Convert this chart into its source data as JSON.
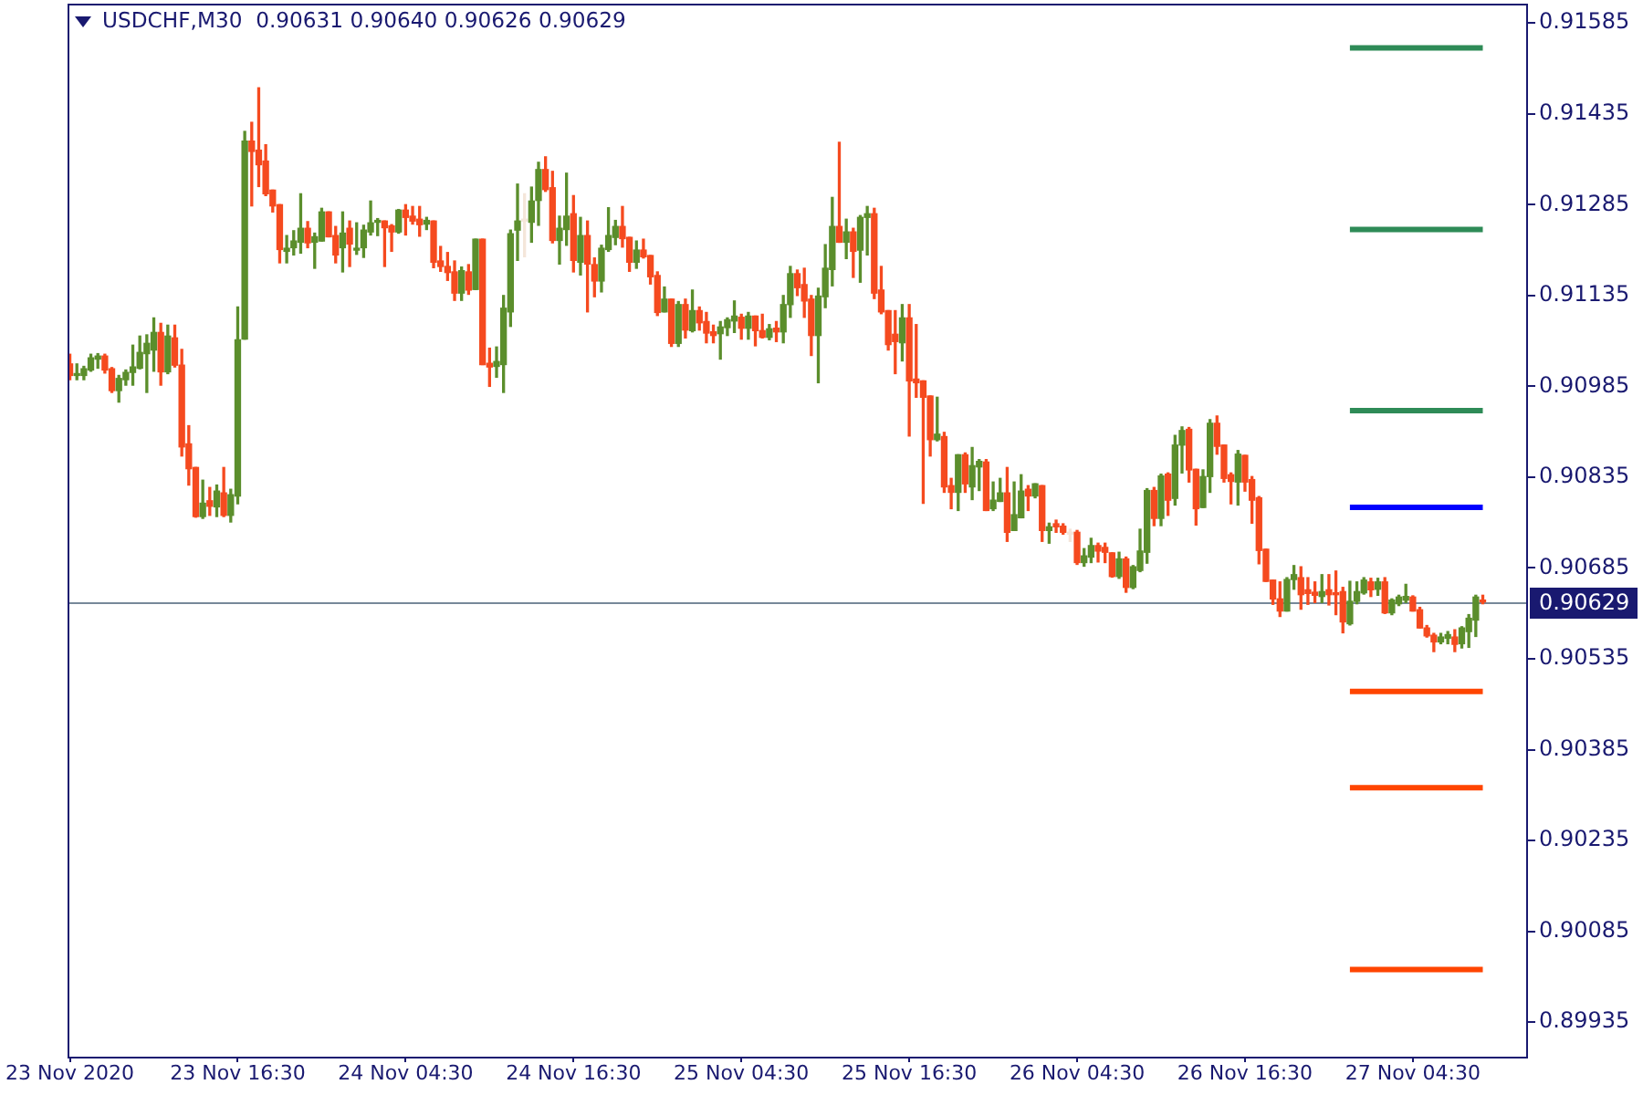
{
  "chart_data": {
    "type": "candlestick",
    "title": "USDCHF,M30  0.90631 0.90640 0.90626 0.90629",
    "x": [
      "2020-11-23T04:30",
      "2020-11-23T05:00",
      "2020-11-23T05:30",
      "2020-11-23T06:00",
      "2020-11-23T06:30",
      "2020-11-23T07:00",
      "2020-11-23T07:30",
      "2020-11-23T08:00",
      "2020-11-23T08:30",
      "2020-11-23T09:00",
      "2020-11-23T09:30",
      "2020-11-23T10:00",
      "2020-11-23T10:30",
      "2020-11-23T11:00",
      "2020-11-23T11:30",
      "2020-11-23T12:00",
      "2020-11-23T12:30",
      "2020-11-23T13:00",
      "2020-11-23T13:30",
      "2020-11-23T14:00",
      "2020-11-23T14:30",
      "2020-11-23T15:00",
      "2020-11-23T15:30",
      "2020-11-23T16:00",
      "2020-11-23T16:30",
      "2020-11-23T17:00",
      "2020-11-23T17:30",
      "2020-11-23T18:00",
      "2020-11-23T18:30",
      "2020-11-23T19:00",
      "2020-11-23T19:30",
      "2020-11-23T20:00",
      "2020-11-23T20:30",
      "2020-11-23T21:00",
      "2020-11-23T21:30",
      "2020-11-23T22:00",
      "2020-11-23T22:30",
      "2020-11-23T23:00",
      "2020-11-23T23:30",
      "2020-11-24T00:00",
      "2020-11-24T00:30",
      "2020-11-24T01:00",
      "2020-11-24T01:30",
      "2020-11-24T02:00",
      "2020-11-24T02:30",
      "2020-11-24T03:00",
      "2020-11-24T03:30",
      "2020-11-24T04:00",
      "2020-11-24T04:30",
      "2020-11-24T05:00",
      "2020-11-24T05:30",
      "2020-11-24T06:00",
      "2020-11-24T06:30",
      "2020-11-24T07:00",
      "2020-11-24T07:30",
      "2020-11-24T08:00",
      "2020-11-24T08:30",
      "2020-11-24T09:00",
      "2020-11-24T09:30",
      "2020-11-24T10:00",
      "2020-11-24T10:30",
      "2020-11-24T11:00",
      "2020-11-24T11:30",
      "2020-11-24T12:00",
      "2020-11-24T12:30",
      "2020-11-24T13:00",
      "2020-11-24T13:30",
      "2020-11-24T14:00",
      "2020-11-24T14:30",
      "2020-11-24T15:00",
      "2020-11-24T15:30",
      "2020-11-24T16:00",
      "2020-11-24T16:30",
      "2020-11-24T17:00",
      "2020-11-24T17:30",
      "2020-11-24T18:00",
      "2020-11-24T18:30",
      "2020-11-24T19:00",
      "2020-11-24T19:30",
      "2020-11-24T20:00",
      "2020-11-24T20:30",
      "2020-11-24T21:00",
      "2020-11-24T21:30",
      "2020-11-24T22:00",
      "2020-11-24T22:30",
      "2020-11-24T23:00",
      "2020-11-24T23:30",
      "2020-11-25T00:00",
      "2020-11-25T00:30",
      "2020-11-25T01:00",
      "2020-11-25T01:30",
      "2020-11-25T02:00",
      "2020-11-25T02:30",
      "2020-11-25T03:00",
      "2020-11-25T03:30",
      "2020-11-25T04:00",
      "2020-11-25T04:30",
      "2020-11-25T05:00",
      "2020-11-25T05:30",
      "2020-11-25T06:00",
      "2020-11-25T06:30",
      "2020-11-25T07:00",
      "2020-11-25T07:30",
      "2020-11-25T08:00",
      "2020-11-25T08:30",
      "2020-11-25T09:00",
      "2020-11-25T09:30",
      "2020-11-25T10:00",
      "2020-11-25T10:30",
      "2020-11-25T11:00",
      "2020-11-25T11:30",
      "2020-11-25T12:00",
      "2020-11-25T12:30",
      "2020-11-25T13:00",
      "2020-11-25T13:30",
      "2020-11-25T14:00",
      "2020-11-25T14:30",
      "2020-11-25T15:00",
      "2020-11-25T15:30",
      "2020-11-25T16:00",
      "2020-11-25T16:30",
      "2020-11-25T17:00",
      "2020-11-25T17:30",
      "2020-11-25T18:00",
      "2020-11-25T18:30",
      "2020-11-25T19:00",
      "2020-11-25T19:30",
      "2020-11-25T20:00",
      "2020-11-25T20:30",
      "2020-11-25T21:00",
      "2020-11-25T21:30",
      "2020-11-25T22:00",
      "2020-11-25T22:30",
      "2020-11-25T23:00",
      "2020-11-25T23:30",
      "2020-11-26T00:00",
      "2020-11-26T00:30",
      "2020-11-26T01:00",
      "2020-11-26T01:30",
      "2020-11-26T02:00",
      "2020-11-26T02:30",
      "2020-11-26T03:00",
      "2020-11-26T03:30",
      "2020-11-26T04:00",
      "2020-11-26T04:30",
      "2020-11-26T05:00",
      "2020-11-26T05:30",
      "2020-11-26T06:00",
      "2020-11-26T06:30",
      "2020-11-26T07:00",
      "2020-11-26T07:30",
      "2020-11-26T08:00",
      "2020-11-26T08:30",
      "2020-11-26T09:00",
      "2020-11-26T09:30",
      "2020-11-26T10:00",
      "2020-11-26T10:30",
      "2020-11-26T11:00",
      "2020-11-26T11:30",
      "2020-11-26T12:00",
      "2020-11-26T12:30",
      "2020-11-26T13:00",
      "2020-11-26T13:30",
      "2020-11-26T14:00",
      "2020-11-26T14:30",
      "2020-11-26T15:00",
      "2020-11-26T15:30",
      "2020-11-26T16:00",
      "2020-11-26T16:30",
      "2020-11-26T17:00",
      "2020-11-26T17:30",
      "2020-11-26T18:00",
      "2020-11-26T18:30",
      "2020-11-26T19:00",
      "2020-11-26T19:30",
      "2020-11-26T20:00",
      "2020-11-26T20:30",
      "2020-11-26T21:00",
      "2020-11-26T21:30",
      "2020-11-26T22:00",
      "2020-11-26T22:30",
      "2020-11-26T23:00",
      "2020-11-26T23:30",
      "2020-11-27T00:00",
      "2020-11-27T00:30",
      "2020-11-27T01:00",
      "2020-11-27T01:30",
      "2020-11-27T02:00",
      "2020-11-27T02:30",
      "2020-11-27T03:00",
      "2020-11-27T03:30",
      "2020-11-27T04:00",
      "2020-11-27T04:30",
      "2020-11-27T05:00",
      "2020-11-27T05:30",
      "2020-11-27T06:00",
      "2020-11-27T06:30",
      "2020-11-27T07:00",
      "2020-11-27T07:30",
      "2020-11-27T08:00",
      "2020-11-27T08:30",
      "2020-11-27T09:00",
      "2020-11-27T09:30"
    ],
    "ohlc": [
      [
        0.91022,
        0.91038,
        0.90996,
        0.91003
      ],
      [
        0.91003,
        0.91022,
        0.90996,
        0.91005
      ],
      [
        0.91003,
        0.91018,
        0.90996,
        0.91014
      ],
      [
        0.91012,
        0.91038,
        0.9101,
        0.91032
      ],
      [
        0.9103,
        0.91039,
        0.91015,
        0.91035
      ],
      [
        0.91035,
        0.91038,
        0.91007,
        0.91012
      ],
      [
        0.91014,
        0.91016,
        0.90975,
        0.90978
      ],
      [
        0.90978,
        0.91003,
        0.90959,
        0.90998
      ],
      [
        0.90996,
        0.91012,
        0.90987,
        0.91008
      ],
      [
        0.91008,
        0.91053,
        0.90987,
        0.91017
      ],
      [
        0.91015,
        0.91068,
        0.91014,
        0.91041
      ],
      [
        0.91039,
        0.9107,
        0.90975,
        0.91056
      ],
      [
        0.91045,
        0.91098,
        0.9101,
        0.91074
      ],
      [
        0.91074,
        0.91089,
        0.90987,
        0.91009
      ],
      [
        0.91009,
        0.91086,
        0.91006,
        0.91068
      ],
      [
        0.91065,
        0.91086,
        0.91017,
        0.9102
      ],
      [
        0.9102,
        0.91046,
        0.9087,
        0.90885
      ],
      [
        0.9089,
        0.9092,
        0.90822,
        0.90849
      ],
      [
        0.90851,
        0.90851,
        0.90769,
        0.9077
      ],
      [
        0.9077,
        0.9083,
        0.90767,
        0.90792
      ],
      [
        0.90796,
        0.90818,
        0.90772,
        0.90787
      ],
      [
        0.90786,
        0.90822,
        0.9077,
        0.90812
      ],
      [
        0.90809,
        0.90851,
        0.9077,
        0.90772
      ],
      [
        0.90772,
        0.90815,
        0.90761,
        0.90806
      ],
      [
        0.90804,
        0.91116,
        0.90791,
        0.91062
      ],
      [
        0.91063,
        0.91406,
        0.91063,
        0.9139
      ],
      [
        0.9139,
        0.91421,
        0.91283,
        0.91373
      ],
      [
        0.91375,
        0.91478,
        0.91315,
        0.91351
      ],
      [
        0.91357,
        0.91384,
        0.913,
        0.91303
      ],
      [
        0.91309,
        0.91309,
        0.91273,
        0.91283
      ],
      [
        0.91285,
        0.91285,
        0.91189,
        0.91211
      ],
      [
        0.91208,
        0.91234,
        0.91189,
        0.91213
      ],
      [
        0.91214,
        0.91242,
        0.91202,
        0.91225
      ],
      [
        0.91223,
        0.91303,
        0.91205,
        0.91246
      ],
      [
        0.91246,
        0.91257,
        0.91214,
        0.91222
      ],
      [
        0.91223,
        0.91238,
        0.9118,
        0.91232
      ],
      [
        0.91225,
        0.91279,
        0.91225,
        0.91273
      ],
      [
        0.91273,
        0.91273,
        0.91232,
        0.91232
      ],
      [
        0.91234,
        0.91249,
        0.91189,
        0.91202
      ],
      [
        0.91214,
        0.91273,
        0.91174,
        0.91238
      ],
      [
        0.91246,
        0.91258,
        0.91183,
        0.9122
      ],
      [
        0.9121,
        0.91255,
        0.91203,
        0.91213
      ],
      [
        0.91214,
        0.91251,
        0.91198,
        0.91243
      ],
      [
        0.9124,
        0.91291,
        0.91235,
        0.91255
      ],
      [
        0.91256,
        0.91262,
        0.91234,
        0.91259
      ],
      [
        0.91258,
        0.91258,
        0.91183,
        0.91247
      ],
      [
        0.9125,
        0.91252,
        0.91208,
        0.9124
      ],
      [
        0.9124,
        0.91277,
        0.91238,
        0.91276
      ],
      [
        0.91276,
        0.91285,
        0.91235,
        0.91264
      ],
      [
        0.91266,
        0.91282,
        0.91253,
        0.91258
      ],
      [
        0.91261,
        0.91282,
        0.91233,
        0.91252
      ],
      [
        0.91253,
        0.91264,
        0.91244,
        0.91259
      ],
      [
        0.91258,
        0.91258,
        0.91181,
        0.9119
      ],
      [
        0.91192,
        0.91216,
        0.91175,
        0.91183
      ],
      [
        0.91183,
        0.91206,
        0.9116,
        0.91173
      ],
      [
        0.91174,
        0.91192,
        0.91127,
        0.91139
      ],
      [
        0.91139,
        0.91182,
        0.91127,
        0.91176
      ],
      [
        0.91174,
        0.91186,
        0.91137,
        0.91144
      ],
      [
        0.91145,
        0.91228,
        0.91145,
        0.91228
      ],
      [
        0.91228,
        0.91228,
        0.91021,
        0.91021
      ],
      [
        0.91023,
        0.91048,
        0.90985,
        0.91017
      ],
      [
        0.91018,
        0.9105,
        0.91,
        0.91026
      ],
      [
        0.91021,
        0.91135,
        0.90975,
        0.91114
      ],
      [
        0.91108,
        0.91243,
        0.91084,
        0.91237
      ],
      [
        0.91243,
        0.91319,
        0.91193,
        0.91258
      ],
      [
        0.91258,
        0.91303,
        0.91199,
        0.91258
      ],
      [
        0.91256,
        0.91314,
        0.91223,
        0.91291
      ],
      [
        0.91292,
        0.91355,
        0.91251,
        0.91343
      ],
      [
        0.91343,
        0.91364,
        0.91307,
        0.9131
      ],
      [
        0.91313,
        0.9134,
        0.91222,
        0.91226
      ],
      [
        0.91226,
        0.91266,
        0.91187,
        0.91246
      ],
      [
        0.91244,
        0.91337,
        0.91218,
        0.91266
      ],
      [
        0.9127,
        0.913,
        0.91174,
        0.91193
      ],
      [
        0.9119,
        0.91264,
        0.91169,
        0.91234
      ],
      [
        0.91234,
        0.91258,
        0.91108,
        0.91187
      ],
      [
        0.91186,
        0.91197,
        0.91133,
        0.91159
      ],
      [
        0.91159,
        0.91218,
        0.91141,
        0.91213
      ],
      [
        0.91211,
        0.9128,
        0.91208,
        0.91234
      ],
      [
        0.91231,
        0.91259,
        0.91219,
        0.91249
      ],
      [
        0.91249,
        0.91282,
        0.91215,
        0.91229
      ],
      [
        0.91231,
        0.91231,
        0.91175,
        0.9119
      ],
      [
        0.9119,
        0.91225,
        0.9118,
        0.9121
      ],
      [
        0.9121,
        0.91228,
        0.91197,
        0.91199
      ],
      [
        0.91201,
        0.91201,
        0.91154,
        0.91166
      ],
      [
        0.91168,
        0.91174,
        0.91102,
        0.91107
      ],
      [
        0.91108,
        0.91149,
        0.91108,
        0.91129
      ],
      [
        0.91129,
        0.91129,
        0.91051,
        0.91056
      ],
      [
        0.91056,
        0.91125,
        0.91051,
        0.9112
      ],
      [
        0.9112,
        0.91129,
        0.91065,
        0.91078
      ],
      [
        0.91077,
        0.91144,
        0.91075,
        0.9111
      ],
      [
        0.9111,
        0.91116,
        0.91078,
        0.9109
      ],
      [
        0.91092,
        0.91107,
        0.91057,
        0.91073
      ],
      [
        0.91075,
        0.91086,
        0.91057,
        0.91069
      ],
      [
        0.91072,
        0.91092,
        0.9103,
        0.91083
      ],
      [
        0.91082,
        0.91098,
        0.91069,
        0.91095
      ],
      [
        0.91093,
        0.91126,
        0.91074,
        0.91101
      ],
      [
        0.91099,
        0.91104,
        0.91063,
        0.91081
      ],
      [
        0.91081,
        0.91107,
        0.91063,
        0.91101
      ],
      [
        0.91101,
        0.91101,
        0.91052,
        0.91077
      ],
      [
        0.91077,
        0.91104,
        0.91065,
        0.91066
      ],
      [
        0.91066,
        0.91087,
        0.91062,
        0.9108
      ],
      [
        0.91081,
        0.91092,
        0.91059,
        0.91075
      ],
      [
        0.91075,
        0.91135,
        0.91057,
        0.9112
      ],
      [
        0.9112,
        0.91183,
        0.91099,
        0.91171
      ],
      [
        0.91171,
        0.91177,
        0.91135,
        0.91148
      ],
      [
        0.91153,
        0.9118,
        0.91099,
        0.91126
      ],
      [
        0.91129,
        0.91135,
        0.91036,
        0.91069
      ],
      [
        0.91069,
        0.91147,
        0.90991,
        0.91134
      ],
      [
        0.91133,
        0.91219,
        0.91115,
        0.9118
      ],
      [
        0.91178,
        0.91297,
        0.91151,
        0.91249
      ],
      [
        0.91249,
        0.91388,
        0.91223,
        0.91223
      ],
      [
        0.91223,
        0.91261,
        0.91196,
        0.9124
      ],
      [
        0.9124,
        0.91246,
        0.91165,
        0.91208
      ],
      [
        0.9121,
        0.91267,
        0.91157,
        0.91264
      ],
      [
        0.91264,
        0.91282,
        0.91202,
        0.9127
      ],
      [
        0.9127,
        0.91279,
        0.9113,
        0.91139
      ],
      [
        0.91144,
        0.91183,
        0.91105,
        0.91108
      ],
      [
        0.9111,
        0.9111,
        0.91045,
        0.91054
      ],
      [
        0.91071,
        0.9111,
        0.91006,
        0.91059
      ],
      [
        0.91057,
        0.9112,
        0.91027,
        0.91098
      ],
      [
        0.91098,
        0.9112,
        0.90903,
        0.90994
      ],
      [
        0.90997,
        0.91087,
        0.90967,
        0.90991
      ],
      [
        0.90994,
        0.90994,
        0.90792,
        0.90967
      ],
      [
        0.90969,
        0.90969,
        0.9087,
        0.90897
      ],
      [
        0.90897,
        0.90967,
        0.90895,
        0.90906
      ],
      [
        0.90902,
        0.90909,
        0.9081,
        0.90819
      ],
      [
        0.90821,
        0.90833,
        0.90783,
        0.9081
      ],
      [
        0.9081,
        0.90872,
        0.9078,
        0.90872
      ],
      [
        0.90872,
        0.90875,
        0.9081,
        0.90824
      ],
      [
        0.90819,
        0.90884,
        0.90798,
        0.90854
      ],
      [
        0.90852,
        0.90864,
        0.90813,
        0.90861
      ],
      [
        0.9086,
        0.90864,
        0.9078,
        0.9078
      ],
      [
        0.90783,
        0.90827,
        0.9078,
        0.90797
      ],
      [
        0.90795,
        0.90833,
        0.90795,
        0.90809
      ],
      [
        0.90809,
        0.90851,
        0.90729,
        0.90744
      ],
      [
        0.90747,
        0.90827,
        0.90747,
        0.90773
      ],
      [
        0.90768,
        0.90839,
        0.90768,
        0.90812
      ],
      [
        0.90815,
        0.90821,
        0.9078,
        0.90804
      ],
      [
        0.90804,
        0.90824,
        0.90801,
        0.90824
      ],
      [
        0.90821,
        0.90821,
        0.90729,
        0.90747
      ],
      [
        0.90747,
        0.90759,
        0.90726,
        0.90753
      ],
      [
        0.90758,
        0.90764,
        0.90744,
        0.90753
      ],
      [
        0.90754,
        0.90758,
        0.90741,
        0.90744
      ],
      [
        0.90741,
        0.90749,
        0.90729,
        0.90741
      ],
      [
        0.90744,
        0.90747,
        0.90691,
        0.90694
      ],
      [
        0.90694,
        0.90717,
        0.90688,
        0.90705
      ],
      [
        0.90703,
        0.90734,
        0.90694,
        0.90722
      ],
      [
        0.90722,
        0.90726,
        0.90695,
        0.90713
      ],
      [
        0.90719,
        0.90726,
        0.90694,
        0.90711
      ],
      [
        0.9071,
        0.9071,
        0.9067,
        0.90671
      ],
      [
        0.90671,
        0.90711,
        0.90668,
        0.907
      ],
      [
        0.907,
        0.90703,
        0.90645,
        0.90653
      ],
      [
        0.90653,
        0.90689,
        0.90651,
        0.90687
      ],
      [
        0.90681,
        0.90749,
        0.90679,
        0.90713
      ],
      [
        0.90711,
        0.90816,
        0.90693,
        0.90813
      ],
      [
        0.90813,
        0.90818,
        0.90755,
        0.90767
      ],
      [
        0.90767,
        0.9084,
        0.90755,
        0.90837
      ],
      [
        0.9084,
        0.90842,
        0.90772,
        0.90797
      ],
      [
        0.908,
        0.90904,
        0.90789,
        0.90888
      ],
      [
        0.90888,
        0.90918,
        0.90842,
        0.90912
      ],
      [
        0.90914,
        0.90917,
        0.90827,
        0.90847
      ],
      [
        0.90848,
        0.90848,
        0.90756,
        0.90783
      ],
      [
        0.90785,
        0.90847,
        0.90785,
        0.90836
      ],
      [
        0.90836,
        0.9093,
        0.9081,
        0.90924
      ],
      [
        0.90924,
        0.90936,
        0.90873,
        0.90886
      ],
      [
        0.90888,
        0.90888,
        0.90827,
        0.90833
      ],
      [
        0.90839,
        0.90842,
        0.90791,
        0.90828
      ],
      [
        0.90827,
        0.90879,
        0.90789,
        0.90873
      ],
      [
        0.90871,
        0.90871,
        0.90812,
        0.90827
      ],
      [
        0.90831,
        0.90836,
        0.90759,
        0.90797
      ],
      [
        0.90801,
        0.90803,
        0.90692,
        0.90714
      ],
      [
        0.90716,
        0.90716,
        0.90663,
        0.90663
      ],
      [
        0.90665,
        0.90665,
        0.90625,
        0.90634
      ],
      [
        0.90634,
        0.90662,
        0.90605,
        0.90614
      ],
      [
        0.90614,
        0.90669,
        0.90614,
        0.90666
      ],
      [
        0.90666,
        0.90689,
        0.9065,
        0.90674
      ],
      [
        0.90669,
        0.90687,
        0.90617,
        0.90641
      ],
      [
        0.90649,
        0.90669,
        0.90625,
        0.90643
      ],
      [
        0.90645,
        0.90662,
        0.90628,
        0.9064
      ],
      [
        0.90638,
        0.90674,
        0.90628,
        0.90646
      ],
      [
        0.90649,
        0.90674,
        0.90624,
        0.90641
      ],
      [
        0.90643,
        0.9068,
        0.90608,
        0.90641
      ],
      [
        0.90646,
        0.90653,
        0.90578,
        0.90596
      ],
      [
        0.90593,
        0.90663,
        0.90591,
        0.9063
      ],
      [
        0.9063,
        0.90662,
        0.90626,
        0.90646
      ],
      [
        0.90644,
        0.90669,
        0.90642,
        0.90665
      ],
      [
        0.90662,
        0.90668,
        0.90638,
        0.90649
      ],
      [
        0.9065,
        0.90668,
        0.9064,
        0.90662
      ],
      [
        0.90662,
        0.90669,
        0.9061,
        0.90611
      ],
      [
        0.90611,
        0.90634,
        0.90608,
        0.90632
      ],
      [
        0.90626,
        0.9064,
        0.90623,
        0.90637
      ],
      [
        0.90632,
        0.90658,
        0.90628,
        0.90638
      ],
      [
        0.90637,
        0.90639,
        0.90614,
        0.90614
      ],
      [
        0.90616,
        0.9062,
        0.90586,
        0.90586
      ],
      [
        0.90586,
        0.9059,
        0.90571,
        0.90573
      ],
      [
        0.90574,
        0.90577,
        0.90547,
        0.90563
      ],
      [
        0.90563,
        0.90577,
        0.9056,
        0.90571
      ],
      [
        0.90569,
        0.9058,
        0.9056,
        0.90575
      ],
      [
        0.90571,
        0.90583,
        0.90547,
        0.90559
      ],
      [
        0.9056,
        0.90588,
        0.90553,
        0.90586
      ],
      [
        0.9058,
        0.90608,
        0.90554,
        0.90602
      ],
      [
        0.90599,
        0.9064,
        0.90572,
        0.90637
      ],
      [
        0.90631,
        0.9064,
        0.90626,
        0.90629
      ]
    ],
    "colors": [
      "#f54a1f",
      "#5b8e2c",
      "#5b8e2c",
      "#5b8e2c",
      "#5b8e2c",
      "#f54a1f",
      "#f54a1f",
      "#5b8e2c",
      "#5b8e2c",
      "#5b8e2c",
      "#5b8e2c",
      "#5b8e2c",
      "#5b8e2c",
      "#f54a1f",
      "#5b8e2c",
      "#f54a1f",
      "#f54a1f",
      "#f54a1f",
      "#f54a1f",
      "#5b8e2c",
      "#f54a1f",
      "#5b8e2c",
      "#f54a1f",
      "#5b8e2c",
      "#5b8e2c",
      "#5b8e2c",
      "#f54a1f",
      "#f54a1f",
      "#f54a1f",
      "#f54a1f",
      "#f54a1f",
      "#5b8e2c",
      "#5b8e2c",
      "#5b8e2c",
      "#f54a1f",
      "#5b8e2c",
      "#5b8e2c",
      "#f54a1f",
      "#f54a1f",
      "#5b8e2c",
      "#f54a1f",
      "#5b8e2c",
      "#5b8e2c",
      "#5b8e2c",
      "#5b8e2c",
      "#f54a1f",
      "#f54a1f",
      "#5b8e2c",
      "#f54a1f",
      "#f54a1f",
      "#f54a1f",
      "#5b8e2c",
      "#f54a1f",
      "#f54a1f",
      "#f54a1f",
      "#f54a1f",
      "#5b8e2c",
      "#f54a1f",
      "#5b8e2c",
      "#f54a1f",
      "#f54a1f",
      "#5b8e2c",
      "#5b8e2c",
      "#5b8e2c",
      "#5b8e2c",
      "#f4e6da",
      "#5b8e2c",
      "#5b8e2c",
      "#f54a1f",
      "#f54a1f",
      "#5b8e2c",
      "#5b8e2c",
      "#f54a1f",
      "#5b8e2c",
      "#f54a1f",
      "#f54a1f",
      "#5b8e2c",
      "#5b8e2c",
      "#5b8e2c",
      "#f54a1f",
      "#f54a1f",
      "#5b8e2c",
      "#f54a1f",
      "#f54a1f",
      "#f54a1f",
      "#5b8e2c",
      "#f54a1f",
      "#5b8e2c",
      "#f54a1f",
      "#5b8e2c",
      "#f54a1f",
      "#f54a1f",
      "#f54a1f",
      "#5b8e2c",
      "#5b8e2c",
      "#5b8e2c",
      "#f54a1f",
      "#5b8e2c",
      "#f54a1f",
      "#f54a1f",
      "#5b8e2c",
      "#f54a1f",
      "#5b8e2c",
      "#5b8e2c",
      "#f54a1f",
      "#f54a1f",
      "#f54a1f",
      "#5b8e2c",
      "#5b8e2c",
      "#5b8e2c",
      "#f54a1f",
      "#5b8e2c",
      "#f54a1f",
      "#5b8e2c",
      "#5b8e2c",
      "#f54a1f",
      "#f54a1f",
      "#f54a1f",
      "#f54a1f",
      "#5b8e2c",
      "#f54a1f",
      "#f54a1f",
      "#f54a1f",
      "#f54a1f",
      "#5b8e2c",
      "#f54a1f",
      "#f54a1f",
      "#5b8e2c",
      "#f54a1f",
      "#5b8e2c",
      "#5b8e2c",
      "#f54a1f",
      "#5b8e2c",
      "#5b8e2c",
      "#f54a1f",
      "#5b8e2c",
      "#5b8e2c",
      "#f54a1f",
      "#5b8e2c",
      "#f54a1f",
      "#5b8e2c",
      "#f54a1f",
      "#f54a1f",
      "#f4e6da",
      "#f54a1f",
      "#5b8e2c",
      "#5b8e2c",
      "#f54a1f",
      "#f54a1f",
      "#f54a1f",
      "#5b8e2c",
      "#f54a1f",
      "#5b8e2c",
      "#5b8e2c",
      "#5b8e2c",
      "#f54a1f",
      "#5b8e2c",
      "#f54a1f",
      "#5b8e2c",
      "#5b8e2c",
      "#f54a1f",
      "#f54a1f",
      "#5b8e2c",
      "#5b8e2c",
      "#f54a1f",
      "#f54a1f",
      "#f54a1f",
      "#5b8e2c",
      "#f54a1f",
      "#f54a1f",
      "#f54a1f",
      "#f54a1f",
      "#f54a1f",
      "#f54a1f",
      "#5b8e2c",
      "#5b8e2c",
      "#f54a1f",
      "#f54a1f",
      "#f54a1f",
      "#5b8e2c",
      "#f54a1f",
      "#f54a1f",
      "#f54a1f",
      "#5b8e2c",
      "#5b8e2c",
      "#5b8e2c",
      "#f54a1f",
      "#5b8e2c",
      "#f54a1f",
      "#5b8e2c",
      "#5b8e2c",
      "#5b8e2c",
      "#f54a1f",
      "#f54a1f",
      "#f54a1f",
      "#f54a1f",
      "#5b8e2c",
      "#5b8e2c",
      "#f54a1f",
      "#5b8e2c",
      "#5b8e2c",
      "#5b8e2c",
      "#f54a1f"
    ],
    "series": [
      {
        "type": "line",
        "x": [
          "2020-11-27T00:00",
          "2020-11-27T09:30"
        ],
        "values": [
          0.91544,
          0.91544
        ],
        "color": "#2e8b57"
      },
      {
        "type": "line",
        "x": [
          "2020-11-27T00:00",
          "2020-11-27T09:30"
        ],
        "values": [
          0.91244,
          0.91244
        ],
        "color": "#2e8b57"
      },
      {
        "type": "line",
        "x": [
          "2020-11-27T00:00",
          "2020-11-27T09:30"
        ],
        "values": [
          0.90945,
          0.90945
        ],
        "color": "#2e8b57"
      },
      {
        "type": "line",
        "x": [
          "2020-11-27T00:00",
          "2020-11-27T09:30"
        ],
        "values": [
          0.90785,
          0.90785
        ],
        "color": "#0000ff"
      },
      {
        "type": "line",
        "x": [
          "2020-11-27T00:00",
          "2020-11-27T09:30"
        ],
        "values": [
          0.90481,
          0.90481
        ],
        "color": "#ff4500"
      },
      {
        "type": "line",
        "x": [
          "2020-11-27T00:00",
          "2020-11-27T09:30"
        ],
        "values": [
          0.90322,
          0.90322
        ],
        "color": "#ff4500"
      },
      {
        "type": "line",
        "x": [
          "2020-11-27T00:00",
          "2020-11-27T09:30"
        ],
        "values": [
          0.90022,
          0.90022
        ],
        "color": "#ff4500"
      }
    ],
    "ref_lines": [
      {
        "axis": "y",
        "value": 0.90629,
        "label": "0.90629",
        "color": "#778899"
      }
    ],
    "xlim": [
      "2020-11-23T04:20",
      "2020-11-27T12:36"
    ],
    "xticks": [
      {
        "value": "2020-11-23T04:30",
        "label": "23 Nov 2020"
      },
      {
        "value": "2020-11-23T16:30",
        "label": "23 Nov 16:30"
      },
      {
        "value": "2020-11-24T04:30",
        "label": "24 Nov 04:30"
      },
      {
        "value": "2020-11-24T16:30",
        "label": "24 Nov 16:30"
      },
      {
        "value": "2020-11-25T04:30",
        "label": "25 Nov 04:30"
      },
      {
        "value": "2020-11-25T16:30",
        "label": "25 Nov 16:30"
      },
      {
        "value": "2020-11-26T04:30",
        "label": "26 Nov 04:30"
      },
      {
        "value": "2020-11-26T16:30",
        "label": "26 Nov 16:30"
      },
      {
        "value": "2020-11-27T04:30",
        "label": "27 Nov 04:30"
      }
    ],
    "ylim": [
      0.89878,
      0.91617
    ],
    "yticks": [
      0.89935,
      0.90085,
      0.90235,
      0.90385,
      0.90535,
      0.90685,
      0.90835,
      0.90985,
      0.91135,
      0.91285,
      0.91435,
      0.91585
    ]
  }
}
